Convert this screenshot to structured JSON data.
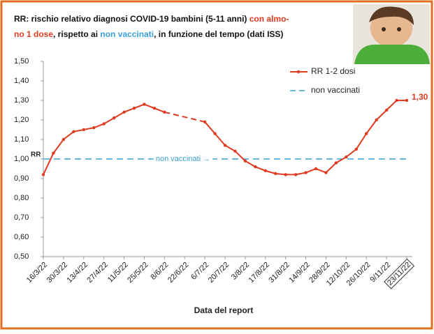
{
  "chart_data": {
    "type": "line",
    "title_lines": [
      [
        {
          "text": "RR: rischio relativo diagnosi COVID-19 bambini (5-11 anni) ",
          "color": "#111111"
        },
        {
          "text": "con almo-",
          "color": "#e03a20"
        }
      ],
      [
        {
          "text": "no 1 dose",
          "color": "#e03a20"
        },
        {
          "text": ", rispetto ai ",
          "color": "#111111"
        },
        {
          "text": "non vaccinati",
          "color": "#3aa0dc"
        },
        {
          "text": ", in funzione del tempo ",
          "color": "#111111"
        },
        {
          "text": "(dati ISS)",
          "color": "#111111"
        }
      ]
    ],
    "x_label": "Data del report",
    "y_label": "RR",
    "categories": [
      "16/3/22",
      null,
      "30/3/22",
      null,
      "13/4/22",
      null,
      "27/4/22",
      null,
      "11/5/22",
      null,
      "25/5/22",
      null,
      "8/6/22",
      null,
      "22/6/22",
      null,
      "6/7/22",
      null,
      "20/7/22",
      null,
      "3/8/22",
      null,
      "17/8/22",
      null,
      "31/8/22",
      null,
      "14/9/22",
      null,
      "28/9/22",
      null,
      "12/10/22",
      null,
      "26/10/22",
      null,
      "9/11/22",
      null,
      "23/11/22"
    ],
    "series": [
      {
        "name": "RR 1-2 dosi",
        "color": "#e03a20",
        "values": [
          0.92,
          1.03,
          1.1,
          1.14,
          1.15,
          1.16,
          1.18,
          1.21,
          1.24,
          1.26,
          1.28,
          1.26,
          1.24,
          null,
          null,
          null,
          1.19,
          1.13,
          1.07,
          1.04,
          0.99,
          0.96,
          0.94,
          0.925,
          0.92,
          0.92,
          0.93,
          0.95,
          0.93,
          0.98,
          1.01,
          1.05,
          1.13,
          1.2,
          1.25,
          1.3,
          1.3
        ],
        "value_labels": [
          null,
          null,
          null,
          null,
          null,
          null,
          null,
          null,
          null,
          null,
          null,
          null,
          null,
          null,
          null,
          null,
          null,
          null,
          null,
          null,
          null,
          null,
          null,
          null,
          null,
          null,
          null,
          null,
          null,
          null,
          null,
          null,
          null,
          null,
          null,
          null,
          "1,30"
        ]
      }
    ],
    "reference": {
      "name": "non vaccinati",
      "value": 1.0,
      "color": "#3aa0dc",
      "annotation": "non vaccinati →"
    },
    "ylim": [
      0.5,
      1.5
    ],
    "yticks": [
      {
        "value": 0.5,
        "label": "0,50"
      },
      {
        "value": 0.6,
        "label": "0,60"
      },
      {
        "value": 0.7,
        "label": "0,70"
      },
      {
        "value": 0.8,
        "label": "0,80"
      },
      {
        "value": 0.9,
        "label": "0,90"
      },
      {
        "value": 1.0,
        "label": "1,00"
      },
      {
        "value": 1.1,
        "label": "1,10"
      },
      {
        "value": 1.2,
        "label": "1,20"
      },
      {
        "value": 1.3,
        "label": "1,30"
      },
      {
        "value": 1.4,
        "label": "1,40"
      },
      {
        "value": 1.5,
        "label": "1,50"
      }
    ],
    "grid": false
  }
}
